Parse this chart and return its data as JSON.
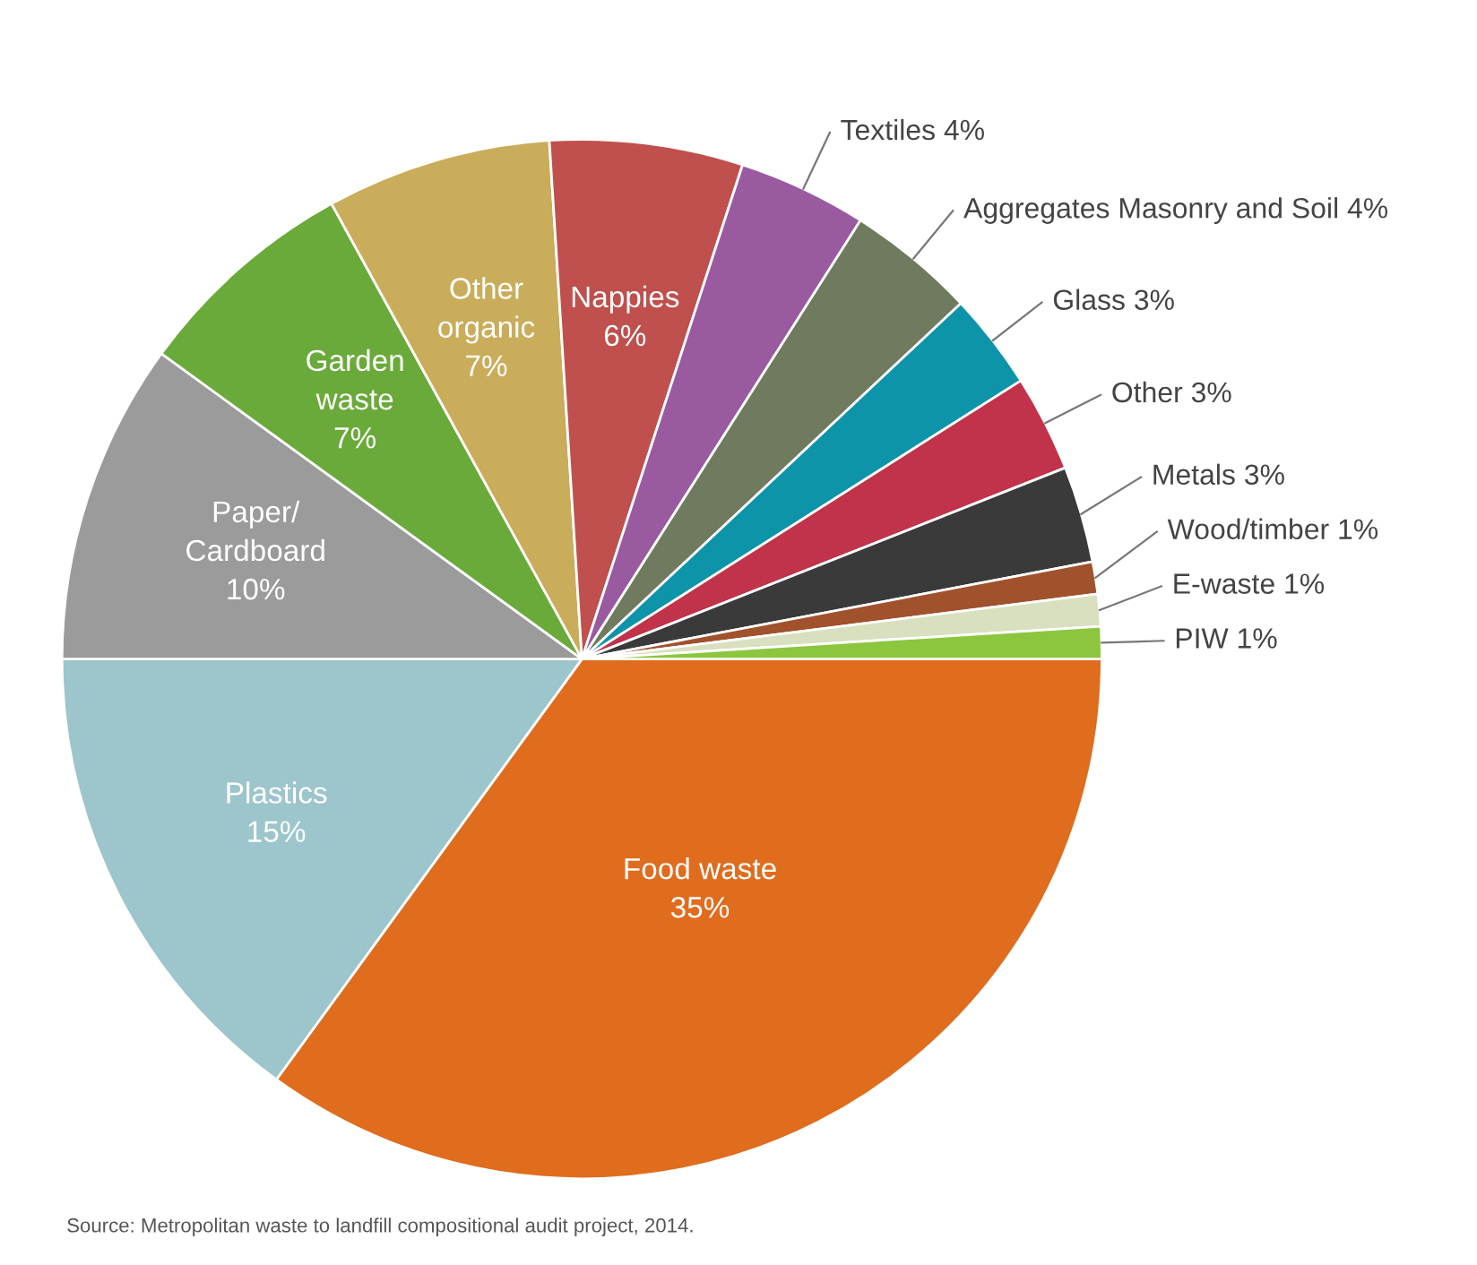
{
  "chart_data": {
    "type": "pie",
    "categories": [
      "Food waste",
      "Plastics",
      "Paper/Cardboard",
      "Garden waste",
      "Other organic",
      "Nappies",
      "Textiles",
      "Aggregates Masonry and Soil",
      "Glass",
      "Other",
      "Metals",
      "Wood/timber",
      "E-waste",
      "PIW"
    ],
    "values": [
      35,
      15,
      10,
      7,
      7,
      6,
      4,
      4,
      3,
      3,
      3,
      1,
      1,
      1
    ],
    "value_labels": [
      "35%",
      "15%",
      "10%",
      "7%",
      "7%",
      "6%",
      "4%",
      "4%",
      "3%",
      "3%",
      "3%",
      "1%",
      "1%",
      "1%"
    ],
    "colors": [
      "#e06c1e",
      "#9dc5cc",
      "#9b9b9b",
      "#6aaa3a",
      "#c9ad5a",
      "#c0504d",
      "#9a5aa0",
      "#6f7a5e",
      "#0e94a8",
      "#c0334a",
      "#3a3a3a",
      "#a0522d",
      "#d8e0c0",
      "#8cc63f"
    ],
    "annotations": [
      "Source: Metropolitan waste to landfill compositional audit project, 2014."
    ]
  }
}
